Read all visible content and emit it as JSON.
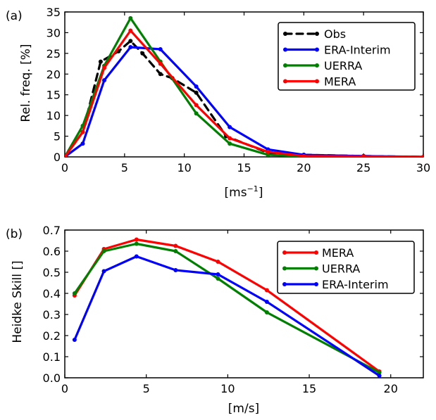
{
  "chart_data": [
    {
      "type": "line",
      "panel_label": "(a)",
      "xlabel": "[ms",
      "xlabel_sup": "−1",
      "xlabel_end": "]",
      "ylabel": "Rel. freq. [%]",
      "xlim": [
        0,
        30
      ],
      "ylim": [
        0,
        35
      ],
      "xticks": [
        "0",
        "5",
        "10",
        "15",
        "20",
        "25",
        "30"
      ],
      "yticks": [
        "0",
        "5",
        "10",
        "15",
        "20",
        "25",
        "30",
        "35"
      ],
      "grid": false,
      "legend_position": "top-right",
      "series": [
        {
          "name": "Obs",
          "color": "#000000",
          "dashed": true,
          "x": [
            0,
            1.5,
            3,
            4.5,
            5.5,
            6.5,
            8,
            9,
            11,
            13.5,
            17,
            20,
            25,
            30
          ],
          "y": [
            0,
            6,
            23,
            25.5,
            28,
            25,
            20,
            19,
            15.5,
            5,
            1,
            0.5,
            0.2,
            0
          ]
        },
        {
          "name": "ERA-Interim",
          "color": "#0000ff",
          "dashed": false,
          "x": [
            0,
            1.5,
            3.3,
            5.5,
            8,
            11,
            13.8,
            17,
            20,
            25,
            30
          ],
          "y": [
            0,
            3.2,
            18.5,
            26.5,
            26,
            17,
            7.2,
            1.8,
            0.5,
            0.2,
            0
          ]
        },
        {
          "name": "UERRA",
          "color": "#008000",
          "dashed": false,
          "x": [
            0,
            1.5,
            3.3,
            5.5,
            8,
            11,
            13.8,
            17,
            20,
            25,
            30
          ],
          "y": [
            0,
            7.5,
            22,
            33.5,
            23,
            10.5,
            3.2,
            0.5,
            0.1,
            0,
            0
          ]
        },
        {
          "name": "MERA",
          "color": "#ff0000",
          "dashed": false,
          "x": [
            0,
            1.5,
            3.3,
            5.5,
            8,
            11,
            13.8,
            17,
            20,
            25,
            30
          ],
          "y": [
            0,
            6,
            21.5,
            30.5,
            22.5,
            12.5,
            4.5,
            1.2,
            0.2,
            0.1,
            0
          ]
        }
      ]
    },
    {
      "type": "line",
      "panel_label": "(b)",
      "xlabel": "[m/s]",
      "ylabel": "Heidke Skill []",
      "xlim": [
        0,
        22
      ],
      "ylim": [
        0,
        0.7
      ],
      "xticks": [
        "0",
        "5",
        "10",
        "15",
        "20"
      ],
      "yticks": [
        "0.0",
        "0.1",
        "0.2",
        "0.3",
        "0.4",
        "0.5",
        "0.6",
        "0.7"
      ],
      "grid": false,
      "legend_position": "top-right",
      "series": [
        {
          "name": "MERA",
          "color": "#ff0000",
          "dashed": false,
          "x": [
            0.6,
            2.4,
            4.4,
            6.8,
            9.4,
            12.4,
            19.3
          ],
          "y": [
            0.39,
            0.61,
            0.655,
            0.625,
            0.55,
            0.415,
            0.03
          ]
        },
        {
          "name": "UERRA",
          "color": "#008000",
          "dashed": false,
          "x": [
            0.6,
            2.4,
            4.4,
            6.8,
            9.4,
            12.4,
            19.3
          ],
          "y": [
            0.4,
            0.6,
            0.635,
            0.6,
            0.47,
            0.31,
            0.025
          ]
        },
        {
          "name": "ERA-Interim",
          "color": "#0000ff",
          "dashed": false,
          "x": [
            0.6,
            2.4,
            4.4,
            6.8,
            9.4,
            12.4,
            19.3
          ],
          "y": [
            0.18,
            0.505,
            0.575,
            0.51,
            0.49,
            0.36,
            0.01
          ]
        }
      ]
    }
  ]
}
